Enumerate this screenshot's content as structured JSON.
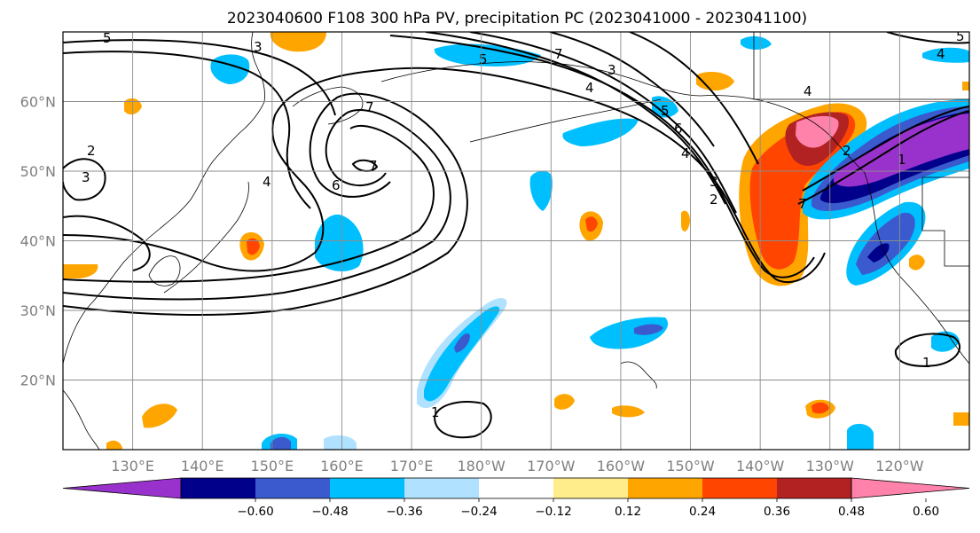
{
  "figure": {
    "title": "2023040600 F108 300 hPa PV, precipitation PC (2023041000 - 2023041100)"
  },
  "map": {
    "projection": "PlateCarree",
    "lon_range": [
      120,
      250
    ],
    "lat_range": [
      10,
      70
    ],
    "lat_ticks": [
      {
        "value": 60,
        "label": "60°N"
      },
      {
        "value": 50,
        "label": "50°N"
      },
      {
        "value": 40,
        "label": "40°N"
      },
      {
        "value": 30,
        "label": "30°N"
      },
      {
        "value": 20,
        "label": "20°N"
      }
    ],
    "lon_ticks": [
      {
        "value": 130,
        "label": "130°E"
      },
      {
        "value": 140,
        "label": "140°E"
      },
      {
        "value": 150,
        "label": "150°E"
      },
      {
        "value": 160,
        "label": "160°E"
      },
      {
        "value": 170,
        "label": "170°E"
      },
      {
        "value": 180,
        "label": "180°W"
      },
      {
        "value": 190,
        "label": "170°W"
      },
      {
        "value": 200,
        "label": "160°W"
      },
      {
        "value": 210,
        "label": "150°W"
      },
      {
        "value": 220,
        "label": "140°W"
      },
      {
        "value": 230,
        "label": "130°W"
      },
      {
        "value": 240,
        "label": "120°W"
      }
    ],
    "gridlines": true,
    "pv_contour_labels": [
      "1",
      "2",
      "3",
      "4",
      "5",
      "6",
      "7"
    ]
  },
  "colorbar": {
    "orientation": "horizontal",
    "extend": "both",
    "levels": [
      -0.72,
      -0.6,
      -0.48,
      -0.36,
      -0.24,
      -0.12,
      0.12,
      0.24,
      0.36,
      0.48,
      0.6,
      0.72
    ],
    "colors": [
      "#9932cc",
      "#00008b",
      "#3a5acd",
      "#00bfff",
      "#b0e2ff",
      "#ffffff",
      "#ffec8b",
      "#ffa500",
      "#ff4500",
      "#b22222",
      "#ff82ab"
    ],
    "tick_labels": [
      "−0.60",
      "−0.48",
      "−0.36",
      "−0.24",
      "−0.12",
      "0.12",
      "0.24",
      "0.36",
      "0.48",
      "0.60"
    ],
    "tick_values": [
      -0.6,
      -0.48,
      -0.36,
      -0.24,
      -0.12,
      0.12,
      0.24,
      0.36,
      0.48,
      0.6
    ]
  }
}
